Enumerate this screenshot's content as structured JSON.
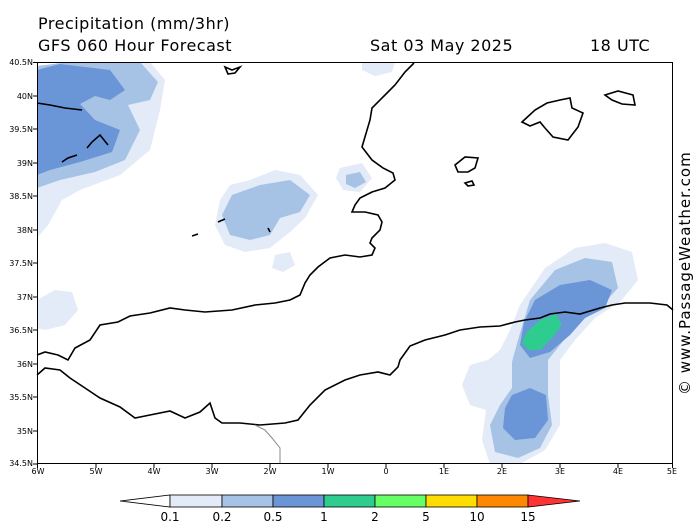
{
  "header": {
    "title": "Precipitation (mm/3hr)",
    "subtitle": "GFS 060 Hour Forecast",
    "date": "Sat 03 May 2025",
    "time": "18 UTC"
  },
  "credit": "© www.PassageWeather.com",
  "map": {
    "lat_labels": [
      "40.5N",
      "40N",
      "39.5N",
      "39N",
      "38.5N",
      "38N",
      "37.5N",
      "37N",
      "36.5N",
      "36N",
      "35.5N",
      "35N",
      "34.5N"
    ],
    "lon_labels": [
      "6W",
      "5W",
      "4W",
      "3W",
      "2W",
      "1W",
      "0",
      "1E",
      "2E",
      "3E",
      "4E",
      "5E"
    ],
    "grid": true
  },
  "legend": {
    "labels": [
      "0.1",
      "0.2",
      "0.5",
      "1",
      "2",
      "5",
      "10",
      "15"
    ],
    "colors": [
      "#ffffff",
      "#e2ebf7",
      "#a6c3e6",
      "#6a95d6",
      "#2fcc8f",
      "#66ff66",
      "#ffdd00",
      "#ff8800",
      "#ff3333"
    ]
  },
  "colors": {
    "p01": "#e2ebf7",
    "p02": "#a6c3e6",
    "p05": "#6a95d6",
    "p1": "#2fcc8f",
    "coast": "#000000"
  }
}
